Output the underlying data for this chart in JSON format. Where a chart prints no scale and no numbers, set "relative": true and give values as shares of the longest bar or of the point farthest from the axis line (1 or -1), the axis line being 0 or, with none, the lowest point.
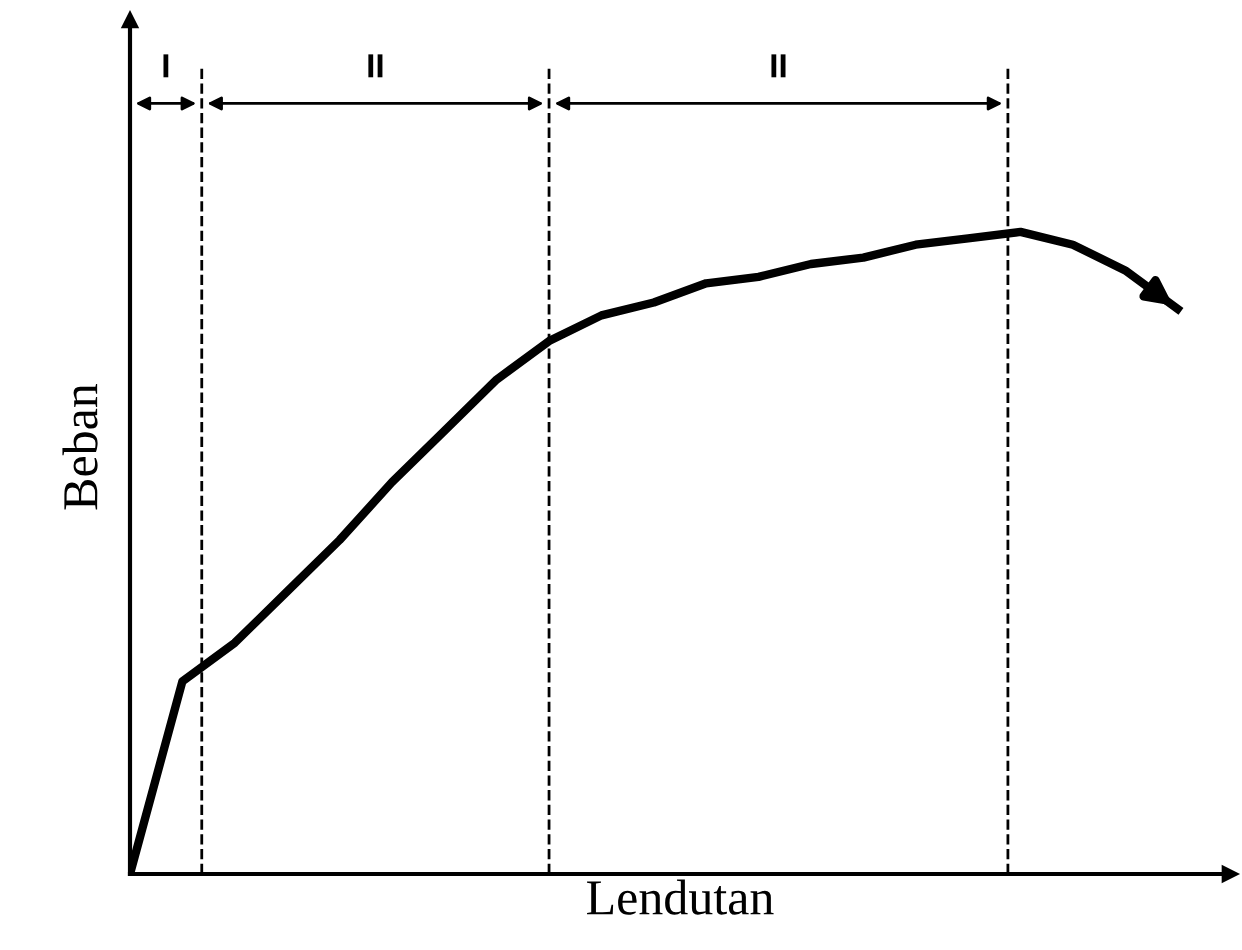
{
  "chart_data": {
    "type": "line",
    "relative": true,
    "xlabel": "Lendutan",
    "ylabel": "Beban",
    "categories": [
      null,
      null,
      null,
      null,
      null,
      null,
      null,
      null,
      null,
      null,
      null,
      null,
      null,
      null,
      null,
      null,
      null,
      null,
      null,
      null,
      null
    ],
    "series": [
      {
        "color": "#000000",
        "values": [
          0,
          0.3,
          0.36,
          0.44,
          0.52,
          0.61,
          0.69,
          0.77,
          0.83,
          0.87,
          0.89,
          0.92,
          0.93,
          0.95,
          0.96,
          0.98,
          0.99,
          1,
          0.98,
          0.94,
          0.88
        ]
      }
    ],
    "annotations": [
      "I",
      "II",
      "II"
    ],
    "marker": "none",
    "line_style": "solid"
  }
}
